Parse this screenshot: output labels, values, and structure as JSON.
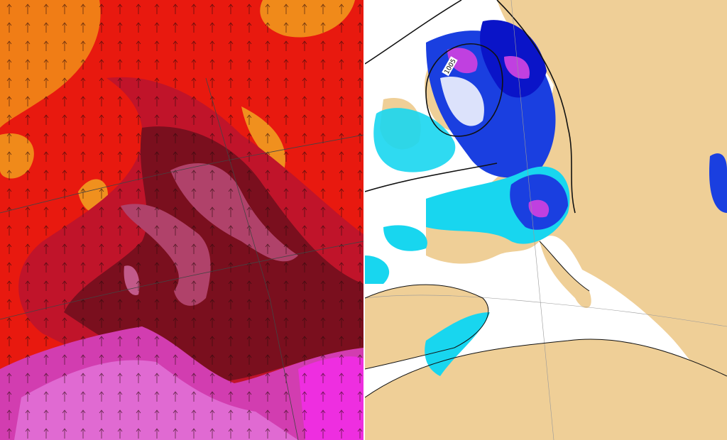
{
  "right_map": {
    "isobar_labels": [
      "1005"
    ]
  }
}
